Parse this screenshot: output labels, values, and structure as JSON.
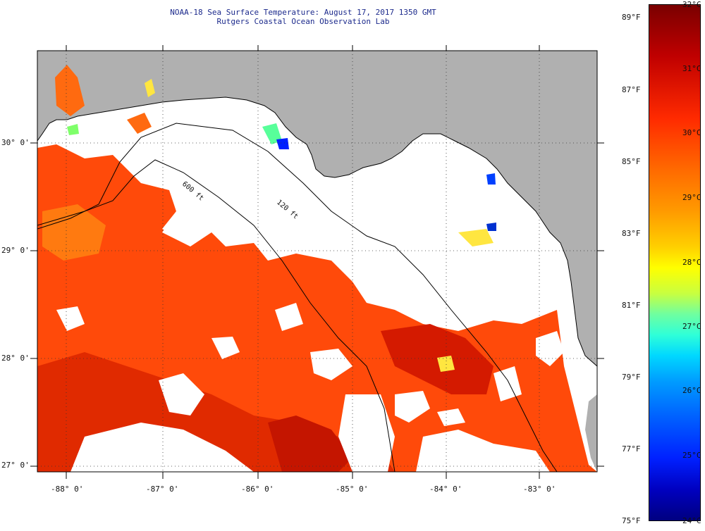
{
  "header": {
    "title": "NOAA-18 Sea Surface Temperature:  August 17, 2017 1350 GMT",
    "subtitle": "Rutgers Coastal Ocean Observation Lab"
  },
  "map": {
    "lat_labels": [
      "30° 0'",
      "29° 0'",
      "28° 0'",
      "27° 0'"
    ],
    "lon_labels": [
      "-88° 0'",
      "-87° 0'",
      "-86° 0'",
      "-85° 0'",
      "-84° 0'",
      "-83° 0'"
    ],
    "isobath_labels": [
      "600 ft",
      "120 ft"
    ],
    "colors": {
      "land": "#b0b0b0",
      "cloud_nodata": "#ffffff",
      "sst_dominant": "#ff4a0a",
      "sst_warm": "#d41a00",
      "sst_cool": "#ffe640"
    }
  },
  "colorbar": {
    "fahrenheit_labels": [
      "89°F",
      "87°F",
      "85°F",
      "83°F",
      "81°F",
      "79°F",
      "77°F",
      "75°F"
    ],
    "celsius_labels": [
      "32°C",
      "31°C",
      "30°C",
      "29°C",
      "28°C",
      "27°C",
      "26°C",
      "25°C",
      "24°C"
    ],
    "min_c": 24,
    "max_c": 32,
    "min_f": 75,
    "max_f": 89
  }
}
